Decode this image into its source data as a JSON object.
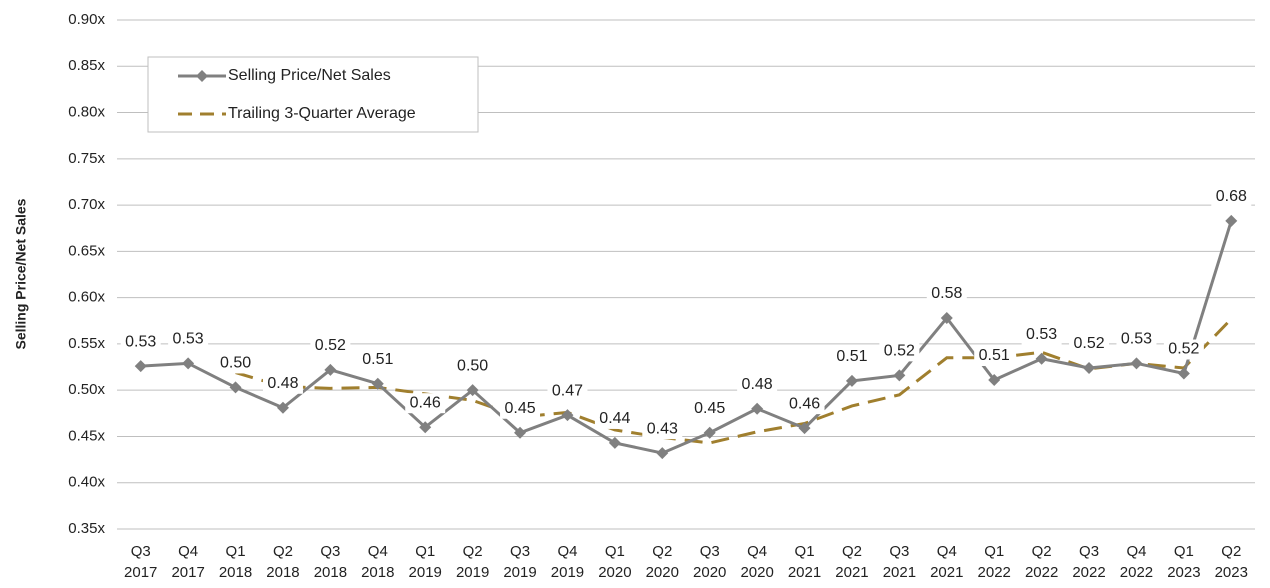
{
  "chart_data": {
    "type": "line",
    "y_axis_label": "Selling Price/Net Sales",
    "categories": [
      [
        "Q3",
        "2017"
      ],
      [
        "Q4",
        "2017"
      ],
      [
        "Q1",
        "2018"
      ],
      [
        "Q2",
        "2018"
      ],
      [
        "Q3",
        "2018"
      ],
      [
        "Q4",
        "2018"
      ],
      [
        "Q1",
        "2019"
      ],
      [
        "Q2",
        "2019"
      ],
      [
        "Q3",
        "2019"
      ],
      [
        "Q4",
        "2019"
      ],
      [
        "Q1",
        "2020"
      ],
      [
        "Q2",
        "2020"
      ],
      [
        "Q3",
        "2020"
      ],
      [
        "Q4",
        "2020"
      ],
      [
        "Q1",
        "2021"
      ],
      [
        "Q2",
        "2021"
      ],
      [
        "Q3",
        "2021"
      ],
      [
        "Q4",
        "2021"
      ],
      [
        "Q1",
        "2022"
      ],
      [
        "Q2",
        "2022"
      ],
      [
        "Q3",
        "2022"
      ],
      [
        "Q4",
        "2022"
      ],
      [
        "Q1",
        "2023"
      ],
      [
        "Q2",
        "2023"
      ]
    ],
    "series": [
      {
        "name": "Selling Price/Net Sales",
        "color": "#808080",
        "style": "solid",
        "markers": true,
        "values": [
          0.526,
          0.529,
          0.503,
          0.481,
          0.522,
          0.507,
          0.46,
          0.5,
          0.454,
          0.473,
          0.443,
          0.432,
          0.454,
          0.48,
          0.459,
          0.51,
          0.516,
          0.578,
          0.511,
          0.534,
          0.524,
          0.529,
          0.518,
          0.683
        ],
        "value_labels": [
          "0.53",
          "0.53",
          "0.50",
          "0.48",
          "0.52",
          "0.51",
          "0.46",
          "0.50",
          "0.45",
          "0.47",
          "0.44",
          "0.43",
          "0.45",
          "0.48",
          "0.46",
          "0.51",
          "0.52",
          "0.58",
          "0.51",
          "0.53",
          "0.52",
          "0.53",
          "0.52",
          "0.68"
        ]
      },
      {
        "name": "Trailing 3-Quarter Average",
        "color": "#a07f2e",
        "style": "dashed",
        "markers": false,
        "values": [
          null,
          null,
          0.519,
          0.504,
          0.502,
          0.503,
          0.496,
          0.489,
          0.471,
          0.476,
          0.457,
          0.449,
          0.443,
          0.455,
          0.464,
          0.483,
          0.495,
          0.535,
          0.535,
          0.541,
          0.523,
          0.529,
          0.524,
          0.577
        ]
      }
    ],
    "ylim": [
      0.35,
      0.9
    ],
    "yticks": [
      {
        "value": 0.35,
        "label": "0.35x"
      },
      {
        "value": 0.4,
        "label": "0.40x"
      },
      {
        "value": 0.45,
        "label": "0.45x"
      },
      {
        "value": 0.5,
        "label": "0.50x"
      },
      {
        "value": 0.55,
        "label": "0.55x"
      },
      {
        "value": 0.6,
        "label": "0.60x"
      },
      {
        "value": 0.65,
        "label": "0.65x"
      },
      {
        "value": 0.7,
        "label": "0.70x"
      },
      {
        "value": 0.75,
        "label": "0.75x"
      },
      {
        "value": 0.8,
        "label": "0.80x"
      },
      {
        "value": 0.85,
        "label": "0.85x"
      },
      {
        "value": 0.9,
        "label": "0.90x"
      }
    ],
    "grid": true,
    "legend": "upper-left"
  }
}
